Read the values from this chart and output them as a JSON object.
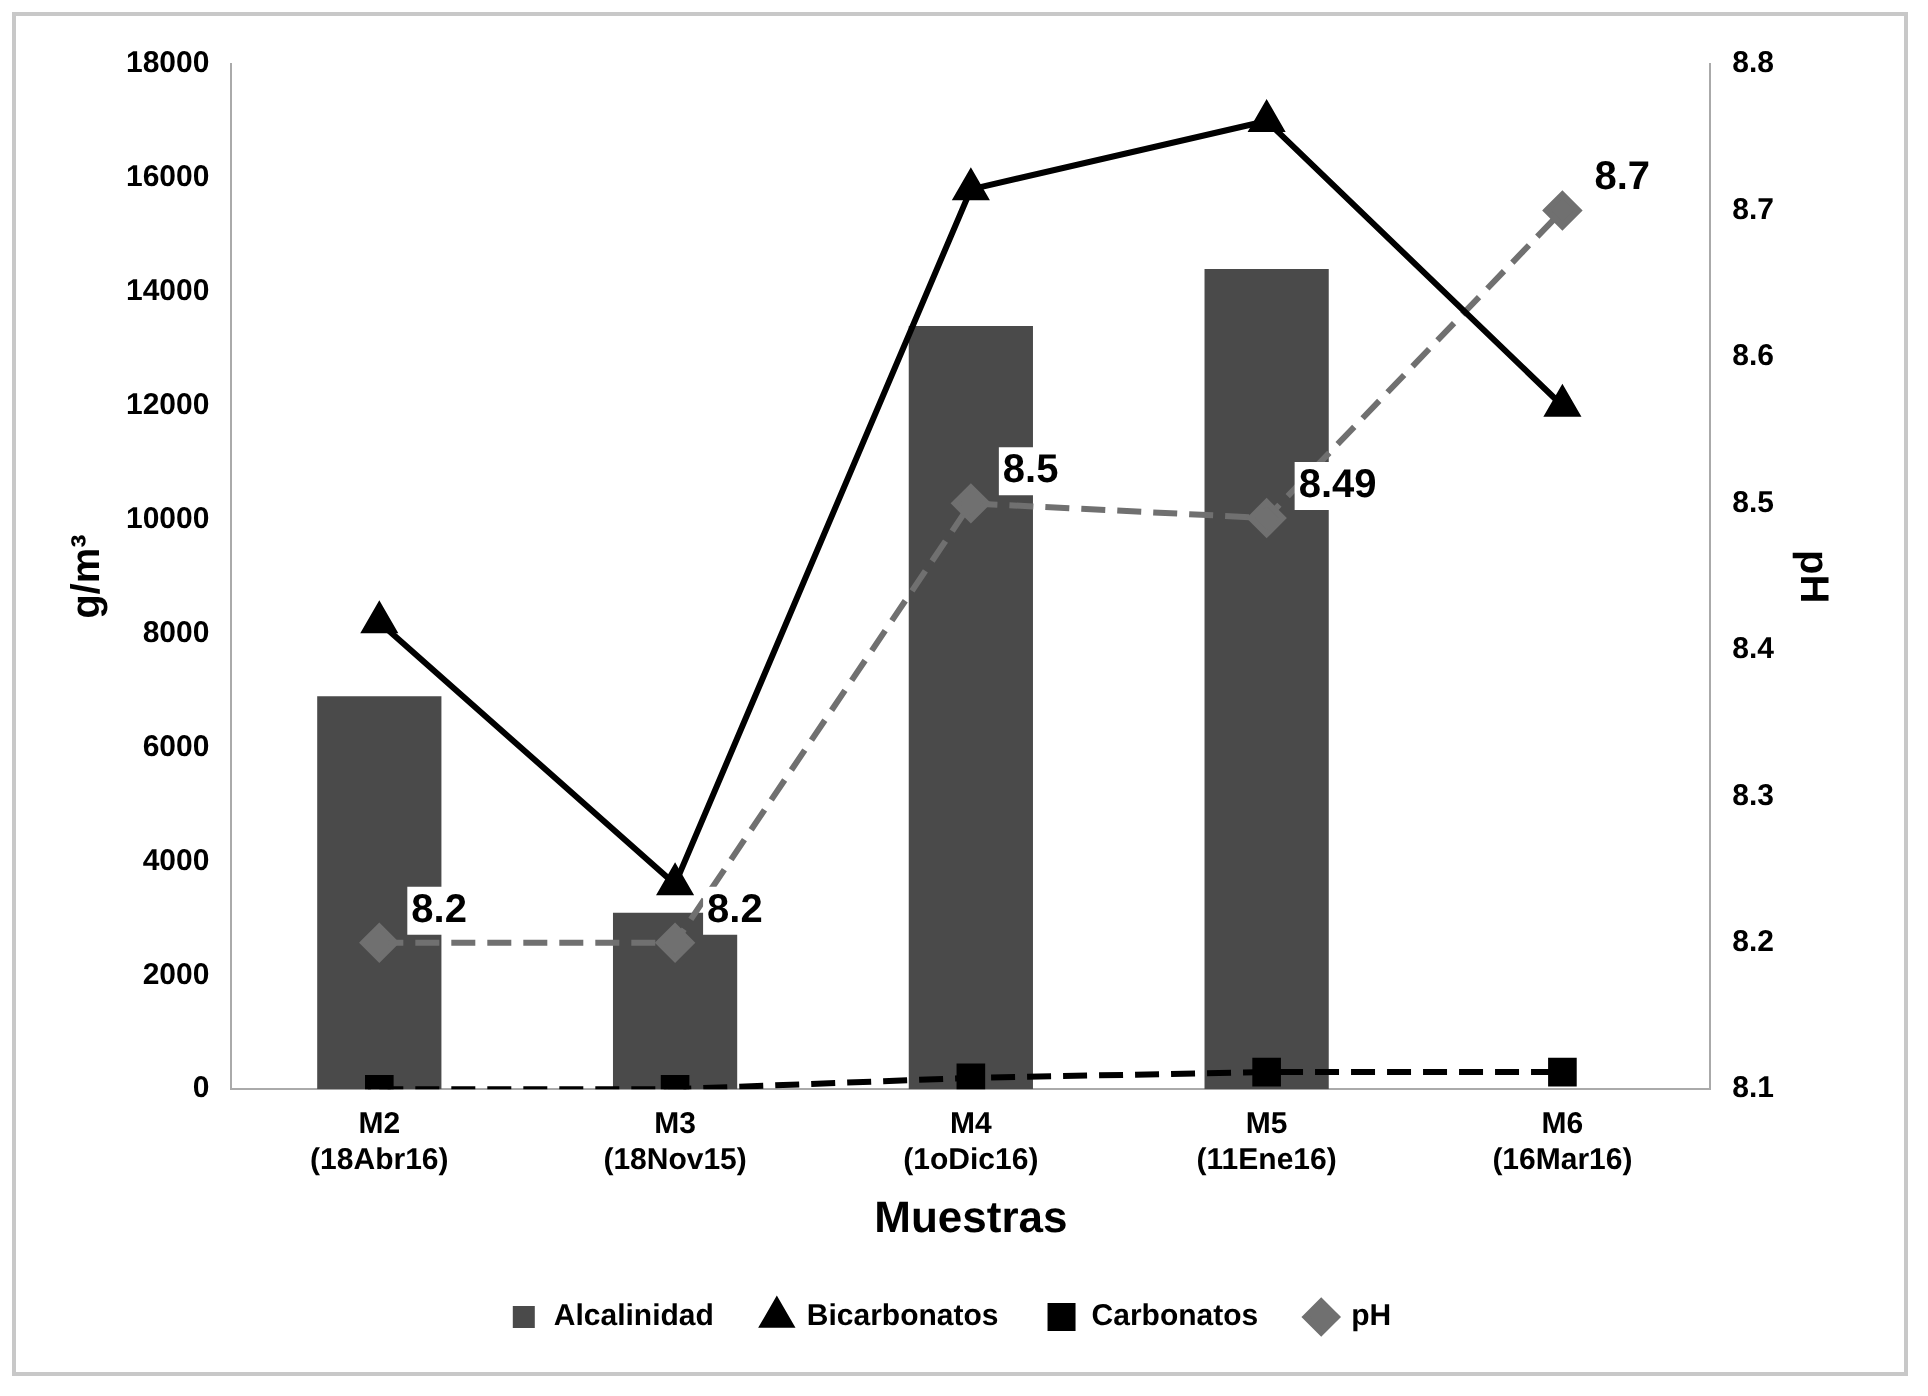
{
  "chart_data": {
    "type": "bar",
    "xlabel": "Muestras",
    "ylabel": "g/m³",
    "y2label": "pH",
    "categories": [
      "M2 (18Abr16)",
      "M3 (18Nov15)",
      "M4 (1oDic16)",
      "M5 (11Ene16)",
      "M6 (16Mar16)"
    ],
    "ylim": [
      0,
      18000
    ],
    "yticks": [
      0,
      2000,
      4000,
      6000,
      8000,
      10000,
      12000,
      14000,
      16000,
      18000
    ],
    "y2lim": [
      8.1,
      8.8
    ],
    "y2ticks": [
      8.1,
      8.2,
      8.3,
      8.4,
      8.5,
      8.6,
      8.7,
      8.8
    ],
    "grid": false,
    "legend": "bottom",
    "series": [
      {
        "name": "Alcalinidad",
        "color": "#4a4a4a",
        "values": [
          6900,
          3100,
          13400,
          14400,
          null
        ]
      },
      {
        "name": "Bicarbonatos",
        "type": "line",
        "color": "#000000",
        "marker": "triangle",
        "line_style": "solid",
        "values": [
          8200,
          3600,
          15800,
          17000,
          12000
        ]
      },
      {
        "name": "Carbonatos",
        "type": "line",
        "color": "#000000",
        "marker": "square",
        "line_style": "dashed",
        "values": [
          0,
          0,
          200,
          300,
          300
        ]
      },
      {
        "name": "pH",
        "type": "line",
        "axis": "y2",
        "color": "#707070",
        "marker": "diamond",
        "line_style": "dashed",
        "values": [
          8.2,
          8.2,
          8.5,
          8.49,
          8.7
        ],
        "value_labels": [
          "8.2",
          "8.2",
          "8.5",
          "8.49",
          "8.7"
        ]
      }
    ]
  }
}
